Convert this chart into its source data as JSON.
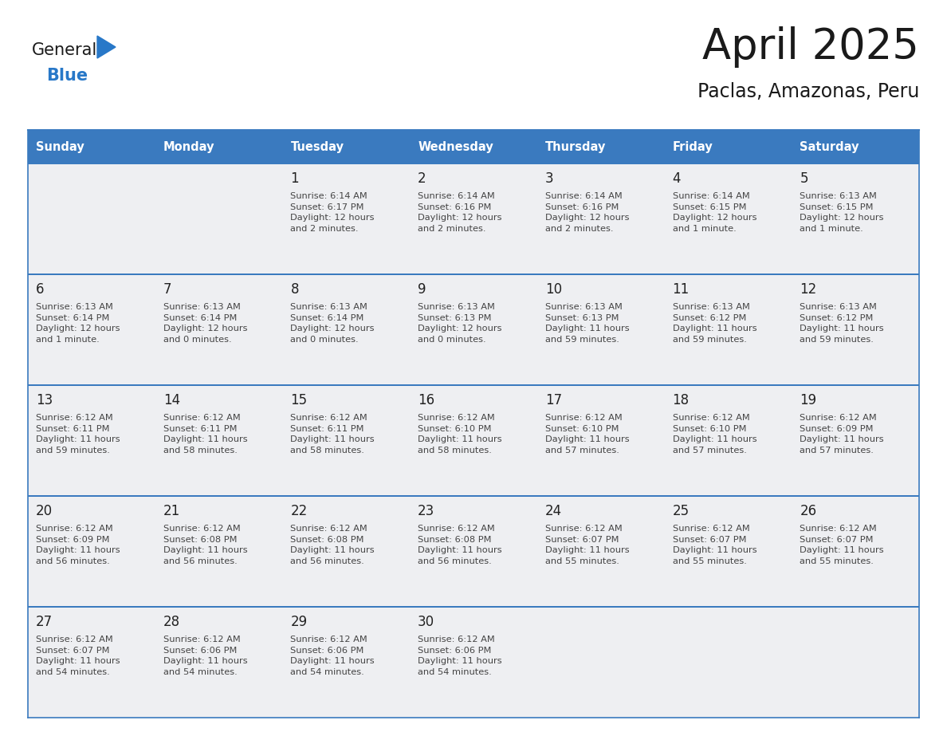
{
  "title": "April 2025",
  "subtitle": "Paclas, Amazonas, Peru",
  "days_of_week": [
    "Sunday",
    "Monday",
    "Tuesday",
    "Wednesday",
    "Thursday",
    "Friday",
    "Saturday"
  ],
  "header_bg": "#3a7abf",
  "header_text": "#ffffff",
  "cell_bg": "#eeeff2",
  "cell_bg_white": "#ffffff",
  "line_color": "#3a7abf",
  "day_number_color": "#222222",
  "text_color": "#444444",
  "title_color": "#1a1a1a",
  "subtitle_color": "#1a1a1a",
  "logo_general_color": "#1a1a1a",
  "logo_blue_color": "#2878c8",
  "weeks": [
    [
      {
        "day": null,
        "info": null
      },
      {
        "day": null,
        "info": null
      },
      {
        "day": 1,
        "info": "Sunrise: 6:14 AM\nSunset: 6:17 PM\nDaylight: 12 hours\nand 2 minutes."
      },
      {
        "day": 2,
        "info": "Sunrise: 6:14 AM\nSunset: 6:16 PM\nDaylight: 12 hours\nand 2 minutes."
      },
      {
        "day": 3,
        "info": "Sunrise: 6:14 AM\nSunset: 6:16 PM\nDaylight: 12 hours\nand 2 minutes."
      },
      {
        "day": 4,
        "info": "Sunrise: 6:14 AM\nSunset: 6:15 PM\nDaylight: 12 hours\nand 1 minute."
      },
      {
        "day": 5,
        "info": "Sunrise: 6:13 AM\nSunset: 6:15 PM\nDaylight: 12 hours\nand 1 minute."
      }
    ],
    [
      {
        "day": 6,
        "info": "Sunrise: 6:13 AM\nSunset: 6:14 PM\nDaylight: 12 hours\nand 1 minute."
      },
      {
        "day": 7,
        "info": "Sunrise: 6:13 AM\nSunset: 6:14 PM\nDaylight: 12 hours\nand 0 minutes."
      },
      {
        "day": 8,
        "info": "Sunrise: 6:13 AM\nSunset: 6:14 PM\nDaylight: 12 hours\nand 0 minutes."
      },
      {
        "day": 9,
        "info": "Sunrise: 6:13 AM\nSunset: 6:13 PM\nDaylight: 12 hours\nand 0 minutes."
      },
      {
        "day": 10,
        "info": "Sunrise: 6:13 AM\nSunset: 6:13 PM\nDaylight: 11 hours\nand 59 minutes."
      },
      {
        "day": 11,
        "info": "Sunrise: 6:13 AM\nSunset: 6:12 PM\nDaylight: 11 hours\nand 59 minutes."
      },
      {
        "day": 12,
        "info": "Sunrise: 6:13 AM\nSunset: 6:12 PM\nDaylight: 11 hours\nand 59 minutes."
      }
    ],
    [
      {
        "day": 13,
        "info": "Sunrise: 6:12 AM\nSunset: 6:11 PM\nDaylight: 11 hours\nand 59 minutes."
      },
      {
        "day": 14,
        "info": "Sunrise: 6:12 AM\nSunset: 6:11 PM\nDaylight: 11 hours\nand 58 minutes."
      },
      {
        "day": 15,
        "info": "Sunrise: 6:12 AM\nSunset: 6:11 PM\nDaylight: 11 hours\nand 58 minutes."
      },
      {
        "day": 16,
        "info": "Sunrise: 6:12 AM\nSunset: 6:10 PM\nDaylight: 11 hours\nand 58 minutes."
      },
      {
        "day": 17,
        "info": "Sunrise: 6:12 AM\nSunset: 6:10 PM\nDaylight: 11 hours\nand 57 minutes."
      },
      {
        "day": 18,
        "info": "Sunrise: 6:12 AM\nSunset: 6:10 PM\nDaylight: 11 hours\nand 57 minutes."
      },
      {
        "day": 19,
        "info": "Sunrise: 6:12 AM\nSunset: 6:09 PM\nDaylight: 11 hours\nand 57 minutes."
      }
    ],
    [
      {
        "day": 20,
        "info": "Sunrise: 6:12 AM\nSunset: 6:09 PM\nDaylight: 11 hours\nand 56 minutes."
      },
      {
        "day": 21,
        "info": "Sunrise: 6:12 AM\nSunset: 6:08 PM\nDaylight: 11 hours\nand 56 minutes."
      },
      {
        "day": 22,
        "info": "Sunrise: 6:12 AM\nSunset: 6:08 PM\nDaylight: 11 hours\nand 56 minutes."
      },
      {
        "day": 23,
        "info": "Sunrise: 6:12 AM\nSunset: 6:08 PM\nDaylight: 11 hours\nand 56 minutes."
      },
      {
        "day": 24,
        "info": "Sunrise: 6:12 AM\nSunset: 6:07 PM\nDaylight: 11 hours\nand 55 minutes."
      },
      {
        "day": 25,
        "info": "Sunrise: 6:12 AM\nSunset: 6:07 PM\nDaylight: 11 hours\nand 55 minutes."
      },
      {
        "day": 26,
        "info": "Sunrise: 6:12 AM\nSunset: 6:07 PM\nDaylight: 11 hours\nand 55 minutes."
      }
    ],
    [
      {
        "day": 27,
        "info": "Sunrise: 6:12 AM\nSunset: 6:07 PM\nDaylight: 11 hours\nand 54 minutes."
      },
      {
        "day": 28,
        "info": "Sunrise: 6:12 AM\nSunset: 6:06 PM\nDaylight: 11 hours\nand 54 minutes."
      },
      {
        "day": 29,
        "info": "Sunrise: 6:12 AM\nSunset: 6:06 PM\nDaylight: 11 hours\nand 54 minutes."
      },
      {
        "day": 30,
        "info": "Sunrise: 6:12 AM\nSunset: 6:06 PM\nDaylight: 11 hours\nand 54 minutes."
      },
      {
        "day": null,
        "info": null
      },
      {
        "day": null,
        "info": null
      },
      {
        "day": null,
        "info": null
      }
    ]
  ]
}
